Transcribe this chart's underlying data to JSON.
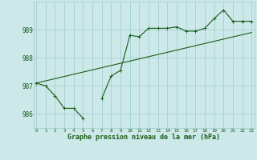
{
  "xlabel": "Graphe pression niveau de la mer (hPa)",
  "bg_color": "#cce8e8",
  "grid_color": "#99cccc",
  "line_color": "#1a5c1a",
  "hours": [
    0,
    1,
    2,
    3,
    4,
    5,
    6,
    7,
    8,
    9,
    10,
    11,
    12,
    13,
    14,
    15,
    16,
    17,
    18,
    19,
    20,
    21,
    22,
    23
  ],
  "series1": [
    987.1,
    987.0,
    986.65,
    986.2,
    986.2,
    985.85,
    null,
    986.55,
    987.35,
    987.55,
    988.8,
    988.75,
    989.05,
    989.05,
    989.05,
    989.1,
    988.95,
    988.95,
    989.05,
    989.4,
    989.7,
    989.3,
    989.3,
    989.3
  ],
  "series2_x": [
    0,
    23
  ],
  "series2_y": [
    987.1,
    988.9
  ],
  "ylim": [
    985.5,
    990.0
  ],
  "yticks": [
    986,
    987,
    988,
    989
  ],
  "xticks": [
    0,
    1,
    2,
    3,
    4,
    5,
    6,
    7,
    8,
    9,
    10,
    11,
    12,
    13,
    14,
    15,
    16,
    17,
    18,
    19,
    20,
    21,
    22,
    23
  ],
  "xlim": [
    -0.3,
    23.3
  ]
}
